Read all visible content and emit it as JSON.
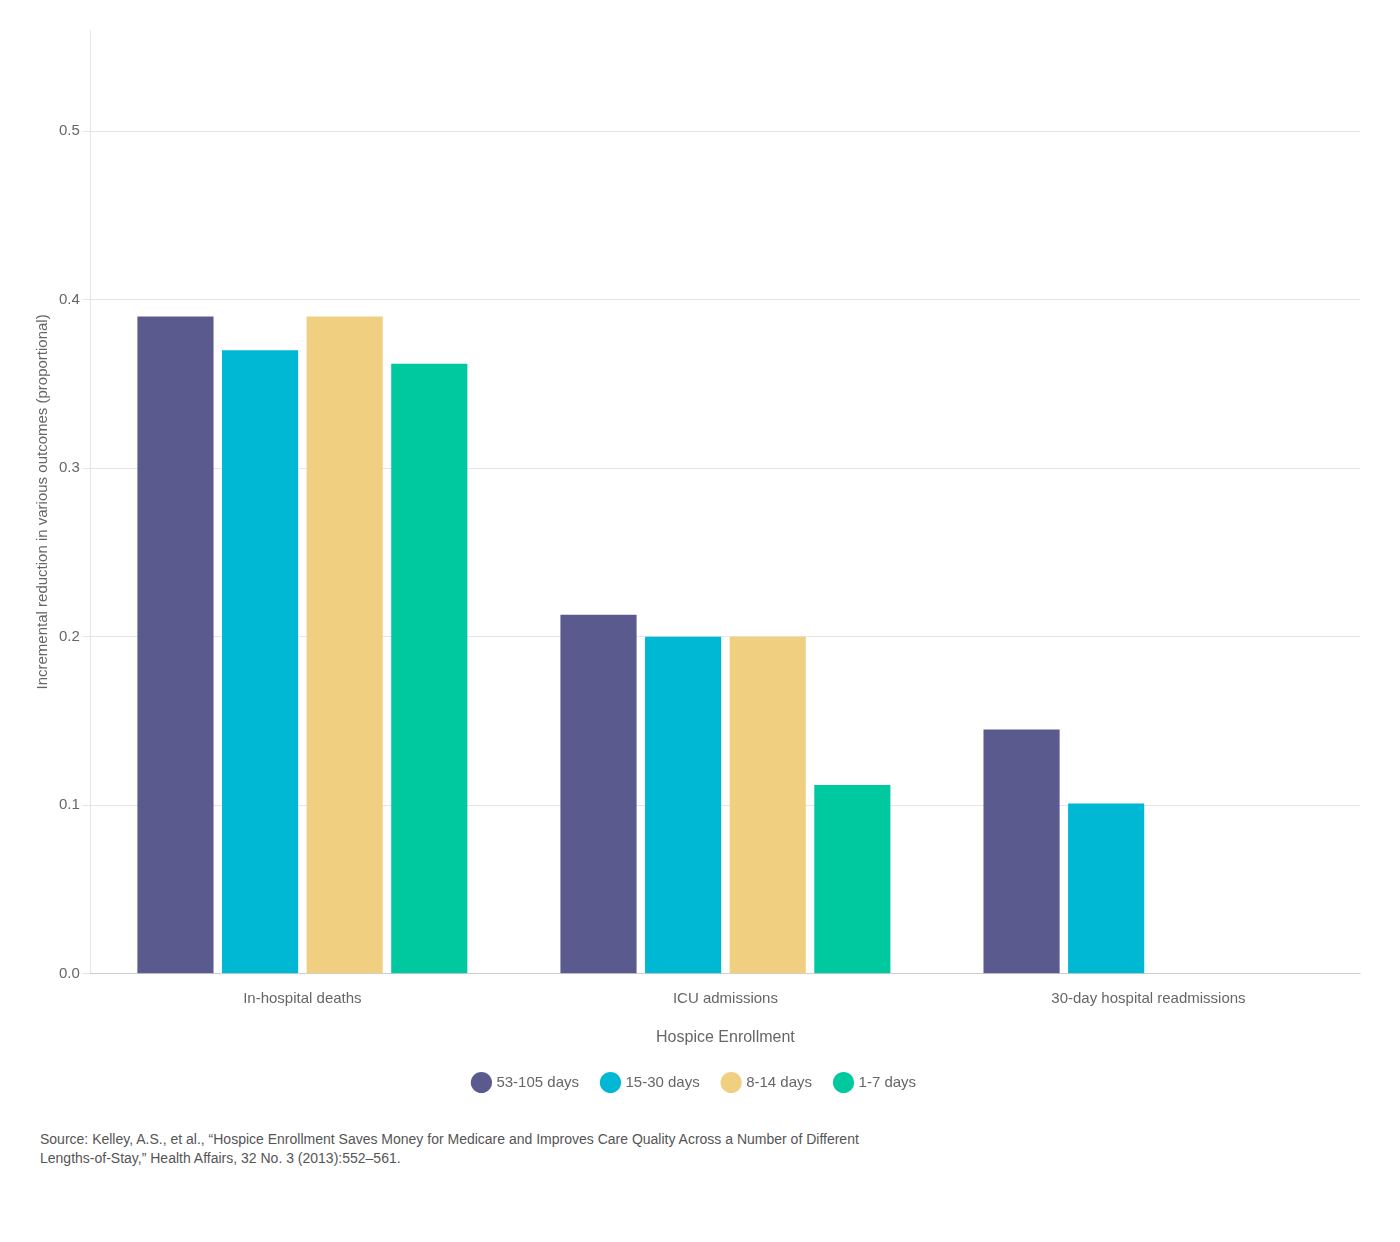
{
  "chart_data": {
    "type": "bar",
    "categories": [
      "In-hospital deaths",
      "ICU admissions",
      "30-day hospital readmissions"
    ],
    "series": [
      {
        "name": "53-105 days",
        "color": "#5a5a8e",
        "values": [
          0.39,
          0.213,
          0.145
        ]
      },
      {
        "name": "15-30 days",
        "color": "#00b8d4",
        "values": [
          0.37,
          0.2,
          0.101
        ]
      },
      {
        "name": "8-14 days",
        "color": "#f0d080",
        "values": [
          0.39,
          0.2,
          null
        ]
      },
      {
        "name": "1-7 days",
        "color": "#00c9a0",
        "values": [
          0.362,
          0.112,
          null
        ]
      }
    ],
    "ylabel": "Incremental reduction in various outcomes (proportional)",
    "xlabel": "Hospice Enrollment",
    "ylim": [
      0,
      0.56
    ],
    "yticks": [
      {
        "value": 0,
        "label": "0.0"
      },
      0.1,
      0.2,
      0.3,
      0.4,
      0.5
    ],
    "grid": "y",
    "legend": "bottom",
    "annotations": [
      "Source: Kelley, A.S., et al., “Hospice Enrollment Saves Money for Medicare and Improves Care Quality Across a Number of Different\nLengths-of-Stay,”  Health Affairs, 32 No. 3 (2013):552–561."
    ]
  }
}
